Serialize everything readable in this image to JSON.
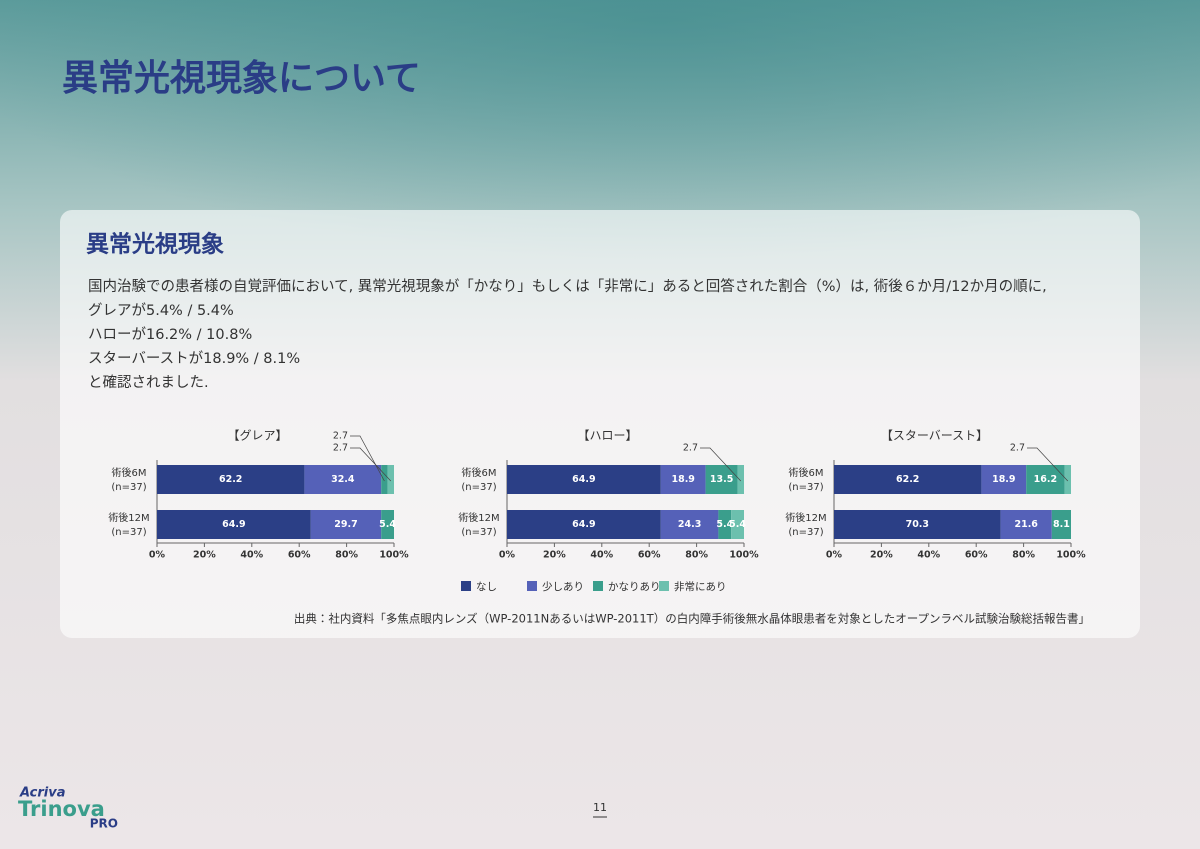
{
  "page_title": "異常光視現象について",
  "section_title": "異常光視現象",
  "intro_lines": [
    "国内治験での患者様の自覚評価において, 異常光視現象が「かなり」もしくは「非常に」あると回答された割合（%）は, 術後６か月/12か月の順に,",
    "グレアが5.4% / 5.4%",
    "ハローが16.2% / 10.8%",
    "スターバーストが18.9% / 8.1%",
    "と確認されました."
  ],
  "chart_data": [
    {
      "type": "bar",
      "orientation": "horizontal",
      "stacked": true,
      "title": "【グレア】",
      "categories": [
        "術後6M",
        "術後12M"
      ],
      "category_notes": [
        "(n=37)",
        "(n=37)"
      ],
      "series": [
        {
          "name": "なし",
          "color": "#2b3f86",
          "values": [
            62.2,
            64.9
          ]
        },
        {
          "name": "少しあり",
          "color": "#5561b8",
          "values": [
            32.4,
            29.7
          ]
        },
        {
          "name": "かなりあり",
          "color": "#3a9e8c",
          "values": [
            2.7,
            5.4
          ]
        },
        {
          "name": "非常にあり",
          "color": "#6cc0ae",
          "values": [
            2.7,
            0
          ]
        }
      ],
      "xlim": [
        0,
        100
      ],
      "xticks": [
        {
          "value": 0,
          "label": "0%"
        },
        {
          "value": 20,
          "label": "20%"
        },
        {
          "value": 40,
          "label": "40%"
        },
        {
          "value": 60,
          "label": "60%"
        },
        {
          "value": 80,
          "label": "80%"
        },
        {
          "value": 100,
          "label": "100%"
        }
      ]
    },
    {
      "type": "bar",
      "orientation": "horizontal",
      "stacked": true,
      "title": "【ハロー】",
      "categories": [
        "術後6M",
        "術後12M"
      ],
      "category_notes": [
        "(n=37)",
        "(n=37)"
      ],
      "series": [
        {
          "name": "なし",
          "color": "#2b3f86",
          "values": [
            64.9,
            64.9
          ]
        },
        {
          "name": "少しあり",
          "color": "#5561b8",
          "values": [
            18.9,
            24.3
          ]
        },
        {
          "name": "かなりあり",
          "color": "#3a9e8c",
          "values": [
            13.5,
            5.4
          ]
        },
        {
          "name": "非常にあり",
          "color": "#6cc0ae",
          "values": [
            2.7,
            5.4
          ]
        }
      ],
      "xlim": [
        0,
        100
      ],
      "xticks": [
        {
          "value": 0,
          "label": "0%"
        },
        {
          "value": 20,
          "label": "20%"
        },
        {
          "value": 40,
          "label": "40%"
        },
        {
          "value": 60,
          "label": "60%"
        },
        {
          "value": 80,
          "label": "80%"
        },
        {
          "value": 100,
          "label": "100%"
        }
      ]
    },
    {
      "type": "bar",
      "orientation": "horizontal",
      "stacked": true,
      "title": "【スターバースト】",
      "categories": [
        "術後6M",
        "術後12M"
      ],
      "category_notes": [
        "(n=37)",
        "(n=37)"
      ],
      "series": [
        {
          "name": "なし",
          "color": "#2b3f86",
          "values": [
            62.2,
            70.3
          ]
        },
        {
          "name": "少しあり",
          "color": "#5561b8",
          "values": [
            18.9,
            21.6
          ]
        },
        {
          "name": "かなりあり",
          "color": "#3a9e8c",
          "values": [
            16.2,
            8.1
          ]
        },
        {
          "name": "非常にあり",
          "color": "#6cc0ae",
          "values": [
            2.7,
            0
          ]
        }
      ],
      "xlim": [
        0,
        100
      ],
      "xticks": [
        {
          "value": 0,
          "label": "0%"
        },
        {
          "value": 20,
          "label": "20%"
        },
        {
          "value": 40,
          "label": "40%"
        },
        {
          "value": 60,
          "label": "60%"
        },
        {
          "value": 80,
          "label": "80%"
        },
        {
          "value": 100,
          "label": "100%"
        }
      ]
    }
  ],
  "source": "出典：社内資料「多焦点眼内レンズ（WP-2011NあるいはWP-2011T）の白内障手術後無水晶体眼患者を対象としたオープンラベル試験治験総括報告書」",
  "page_number": "11",
  "logo": {
    "brand": "Acriva",
    "name": "Trinova",
    "suffix": "PRO"
  }
}
